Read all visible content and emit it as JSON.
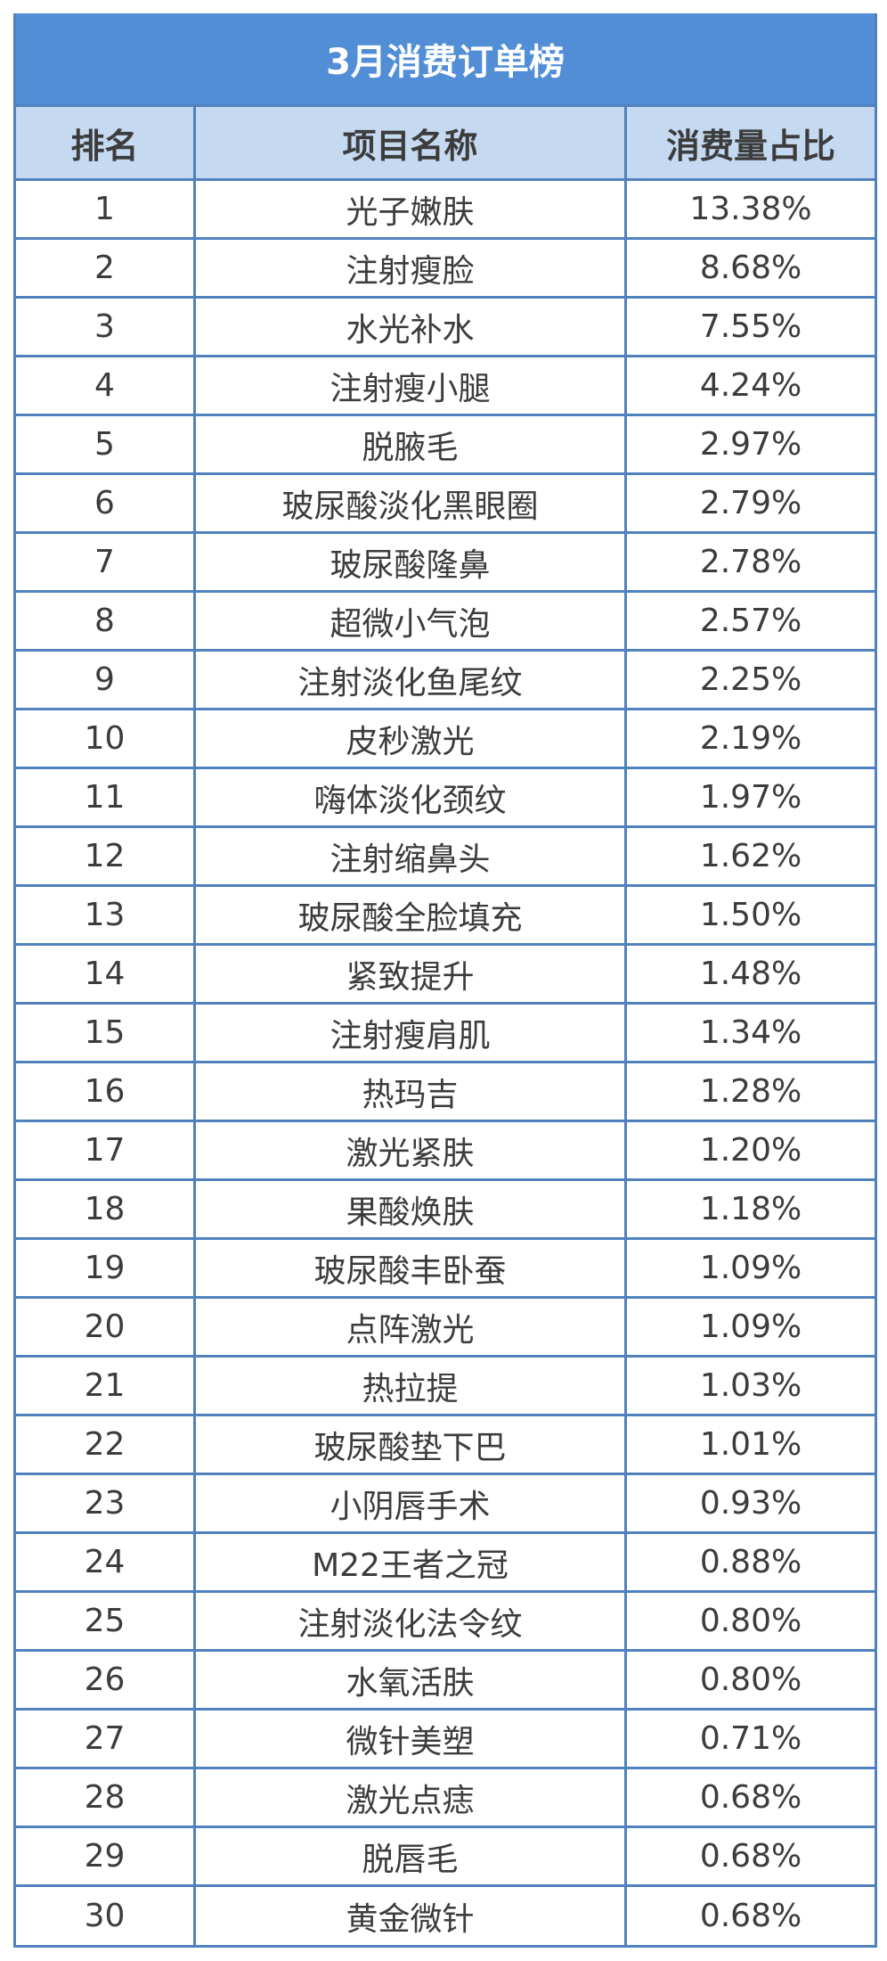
{
  "title": "3月消费订单榜",
  "headers": [
    "排名",
    "项目名称",
    "消费量占比"
  ],
  "rows": [
    [
      "1",
      "光子嫩肤",
      "13.38%"
    ],
    [
      "2",
      "注射瘦脸",
      "8.68%"
    ],
    [
      "3",
      "水光补水",
      "7.55%"
    ],
    [
      "4",
      "注射瘦小腿",
      "4.24%"
    ],
    [
      "5",
      "脱腋毛",
      "2.97%"
    ],
    [
      "6",
      "玻尿酸淡化黑眼圈",
      "2.79%"
    ],
    [
      "7",
      "玻尿酸隆鼻",
      "2.78%"
    ],
    [
      "8",
      "超微小气泡",
      "2.57%"
    ],
    [
      "9",
      "注射淡化鱼尾纹",
      "2.25%"
    ],
    [
      "10",
      "皮秒激光",
      "2.19%"
    ],
    [
      "11",
      "嗨体淡化颈纹",
      "1.97%"
    ],
    [
      "12",
      "注射缩鼻头",
      "1.62%"
    ],
    [
      "13",
      "玻尿酸全脸填充",
      "1.50%"
    ],
    [
      "14",
      "紧致提升",
      "1.48%"
    ],
    [
      "15",
      "注射瘦肩肌",
      "1.34%"
    ],
    [
      "16",
      "热玛吉",
      "1.28%"
    ],
    [
      "17",
      "激光紧肤",
      "1.20%"
    ],
    [
      "18",
      "果酸焕肤",
      "1.18%"
    ],
    [
      "19",
      "玻尿酸丰卧蚕",
      "1.09%"
    ],
    [
      "20",
      "点阵激光",
      "1.09%"
    ],
    [
      "21",
      "热拉提",
      "1.03%"
    ],
    [
      "22",
      "玻尿酸垫下巴",
      "1.01%"
    ],
    [
      "23",
      "小阴唇手术",
      "0.93%"
    ],
    [
      "24",
      "M22王者之冠",
      "0.88%"
    ],
    [
      "25",
      "注射淡化法令纹",
      "0.80%"
    ],
    [
      "26",
      "水氧活肤",
      "0.80%"
    ],
    [
      "27",
      "微针美塑",
      "0.71%"
    ],
    [
      "28",
      "激光点痣",
      "0.68%"
    ],
    [
      "29",
      "脱唇毛",
      "0.68%"
    ],
    [
      "30",
      "黄金微针",
      "0.68%"
    ]
  ],
  "colors": {
    "title_bg": "#528ed6",
    "header_bg": "#c5d9f1",
    "border": "#4f81bd"
  }
}
